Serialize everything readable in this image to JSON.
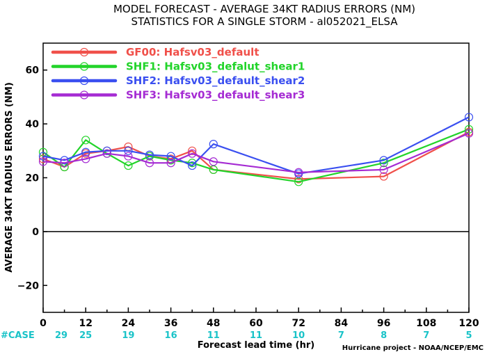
{
  "header": {
    "title_line1": "MODEL FORECAST - AVERAGE 34KT RADIUS ERRORS (NM)",
    "title_line2": "STATISTICS FOR A SINGLE STORM - al052021_ELSA"
  },
  "footer": {
    "credit": "Hurricane project - NOAA/NCEP/EMC"
  },
  "colors": {
    "zero_line": "#000000",
    "case_text": "#19c3c8"
  },
  "chart_data": {
    "type": "line",
    "title": "MODEL FORECAST - AVERAGE 34KT RADIUS ERRORS (NM)",
    "subtitle": "STATISTICS FOR A SINGLE STORM - al052021_ELSA",
    "xlabel": "Forecast lead time (hr)",
    "ylabel": "AVERAGE 34KT RADIUS ERRORS (NM)",
    "xlim": [
      0,
      120
    ],
    "ylim": [
      -30,
      70
    ],
    "x_ticks": [
      0,
      12,
      24,
      36,
      48,
      60,
      72,
      84,
      96,
      108,
      120
    ],
    "y_ticks": [
      -20,
      0,
      20,
      40,
      60
    ],
    "case_label": "#CASE",
    "case_counts": [
      29,
      25,
      19,
      16,
      11,
      11,
      10,
      7,
      8,
      7,
      5
    ],
    "zero_line": true,
    "legend_position": "top-left",
    "series": [
      {
        "name": "GF00: Hafsv03_default",
        "color": "#f0504a",
        "x": [
          0,
          6,
          12,
          18,
          24,
          30,
          36,
          42,
          48,
          72,
          96,
          120
        ],
        "y": [
          27,
          24,
          29,
          30,
          31.5,
          28,
          27,
          30,
          23,
          19.5,
          20.5,
          37
        ]
      },
      {
        "name": "SHF1: Hafsv03_defalut_shear1",
        "color": "#22d42a",
        "x": [
          0,
          6,
          12,
          18,
          24,
          30,
          36,
          42,
          48,
          72,
          96,
          120
        ],
        "y": [
          29.5,
          24,
          34,
          29,
          24.5,
          28,
          26.5,
          25.5,
          23,
          18.5,
          25.5,
          38
        ]
      },
      {
        "name": "SHF2: Hafsv03_default_shear2",
        "color": "#3a4ff0",
        "x": [
          0,
          6,
          12,
          18,
          24,
          30,
          36,
          42,
          48,
          72,
          96,
          120
        ],
        "y": [
          28,
          26.5,
          29.5,
          30,
          30,
          28.5,
          28,
          24.5,
          32.5,
          21.5,
          26.5,
          42.5
        ]
      },
      {
        "name": "SHF3: Hafsv03_default_shear3",
        "color": "#a52bd3",
        "x": [
          0,
          6,
          12,
          18,
          24,
          30,
          36,
          42,
          48,
          72,
          96,
          120
        ],
        "y": [
          26,
          25.5,
          27,
          29,
          28,
          25.5,
          25.5,
          29,
          26,
          22,
          23,
          36.5
        ]
      }
    ]
  }
}
